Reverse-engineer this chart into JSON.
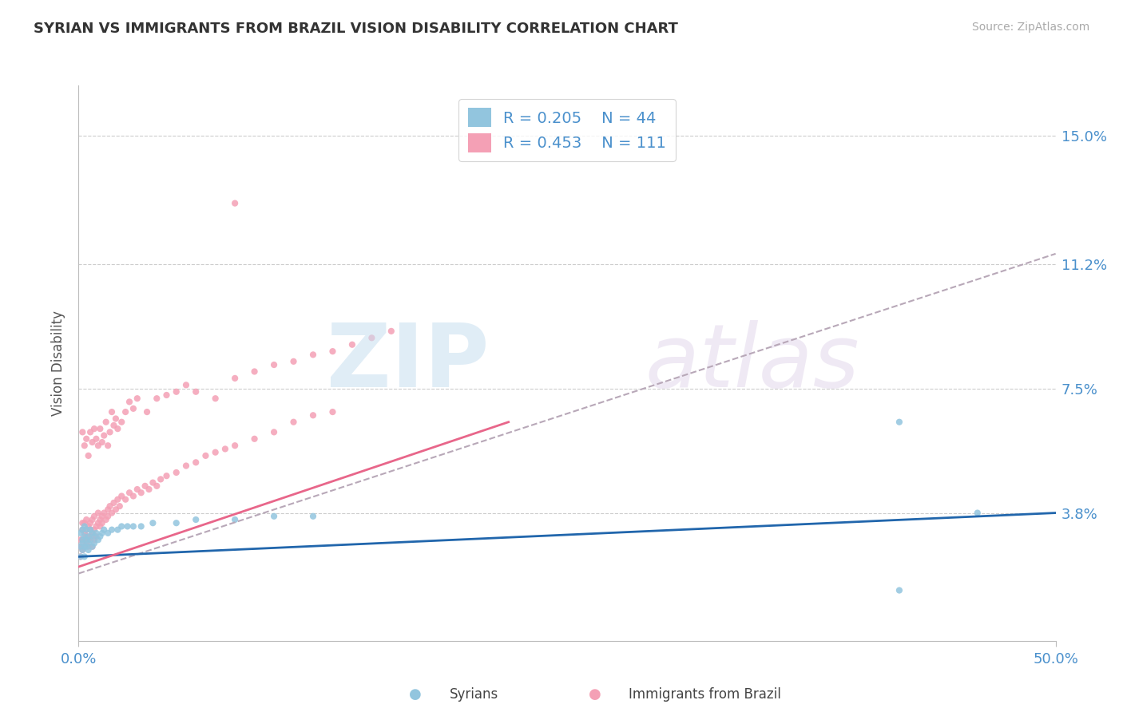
{
  "title": "SYRIAN VS IMMIGRANTS FROM BRAZIL VISION DISABILITY CORRELATION CHART",
  "source": "Source: ZipAtlas.com",
  "xlabel_syrians": "Syrians",
  "xlabel_brazil": "Immigrants from Brazil",
  "ylabel": "Vision Disability",
  "xmin": 0.0,
  "xmax": 0.5,
  "ymin": 0.0,
  "ymax": 0.165,
  "yticks": [
    0.038,
    0.075,
    0.112,
    0.15
  ],
  "ytick_labels": [
    "3.8%",
    "7.5%",
    "11.2%",
    "15.0%"
  ],
  "xtick_labels": [
    "0.0%",
    "50.0%"
  ],
  "xticks": [
    0.0,
    0.5
  ],
  "legend_r1": "R = 0.205",
  "legend_n1": "N = 44",
  "legend_r2": "R = 0.453",
  "legend_n2": "N = 111",
  "color_syrian": "#92c5de",
  "color_brazil": "#f4a0b5",
  "color_syrian_line": "#2166ac",
  "color_brazil_line": "#e8668a",
  "color_dashed_line": "#b8a8b8",
  "background": "#ffffff",
  "grid_color": "#cccccc",
  "title_color": "#333333",
  "axis_label_color": "#4a90cc",
  "syrian_line": [
    [
      0.0,
      0.025
    ],
    [
      0.5,
      0.038
    ]
  ],
  "brazil_line": [
    [
      0.0,
      0.022
    ],
    [
      0.22,
      0.065
    ]
  ],
  "dashed_line": [
    [
      0.0,
      0.02
    ],
    [
      0.5,
      0.115
    ]
  ],
  "syrians_x": [
    0.001,
    0.001,
    0.001,
    0.002,
    0.002,
    0.002,
    0.002,
    0.003,
    0.003,
    0.003,
    0.003,
    0.004,
    0.004,
    0.004,
    0.005,
    0.005,
    0.005,
    0.006,
    0.006,
    0.007,
    0.007,
    0.008,
    0.008,
    0.009,
    0.01,
    0.011,
    0.012,
    0.013,
    0.015,
    0.017,
    0.02,
    0.022,
    0.025,
    0.028,
    0.032,
    0.038,
    0.05,
    0.06,
    0.08,
    0.1,
    0.12,
    0.42,
    0.46,
    0.42
  ],
  "syrians_y": [
    0.028,
    0.032,
    0.025,
    0.03,
    0.027,
    0.033,
    0.029,
    0.028,
    0.031,
    0.025,
    0.034,
    0.03,
    0.028,
    0.033,
    0.029,
    0.031,
    0.027,
    0.03,
    0.033,
    0.028,
    0.032,
    0.031,
    0.029,
    0.032,
    0.03,
    0.031,
    0.032,
    0.033,
    0.032,
    0.033,
    0.033,
    0.034,
    0.034,
    0.034,
    0.034,
    0.035,
    0.035,
    0.036,
    0.036,
    0.037,
    0.037,
    0.065,
    0.038,
    0.015
  ],
  "brazil_x": [
    0.001,
    0.001,
    0.001,
    0.002,
    0.002,
    0.002,
    0.002,
    0.002,
    0.003,
    0.003,
    0.003,
    0.003,
    0.004,
    0.004,
    0.004,
    0.004,
    0.005,
    0.005,
    0.005,
    0.006,
    0.006,
    0.006,
    0.007,
    0.007,
    0.007,
    0.008,
    0.008,
    0.008,
    0.009,
    0.009,
    0.01,
    0.01,
    0.011,
    0.011,
    0.012,
    0.012,
    0.013,
    0.014,
    0.015,
    0.015,
    0.016,
    0.017,
    0.018,
    0.019,
    0.02,
    0.021,
    0.022,
    0.024,
    0.026,
    0.028,
    0.03,
    0.032,
    0.034,
    0.036,
    0.038,
    0.04,
    0.042,
    0.045,
    0.05,
    0.055,
    0.06,
    0.065,
    0.07,
    0.075,
    0.08,
    0.09,
    0.1,
    0.11,
    0.12,
    0.13,
    0.002,
    0.003,
    0.004,
    0.005,
    0.006,
    0.007,
    0.008,
    0.009,
    0.01,
    0.011,
    0.012,
    0.013,
    0.014,
    0.015,
    0.016,
    0.017,
    0.018,
    0.019,
    0.02,
    0.022,
    0.024,
    0.026,
    0.028,
    0.03,
    0.035,
    0.04,
    0.045,
    0.05,
    0.055,
    0.06,
    0.07,
    0.08,
    0.09,
    0.1,
    0.11,
    0.12,
    0.13,
    0.14,
    0.15,
    0.16,
    0.08
  ],
  "brazil_y": [
    0.028,
    0.03,
    0.025,
    0.03,
    0.033,
    0.028,
    0.035,
    0.027,
    0.032,
    0.028,
    0.035,
    0.03,
    0.033,
    0.029,
    0.036,
    0.031,
    0.034,
    0.03,
    0.028,
    0.033,
    0.031,
    0.035,
    0.032,
    0.028,
    0.036,
    0.033,
    0.03,
    0.037,
    0.034,
    0.031,
    0.035,
    0.038,
    0.036,
    0.034,
    0.037,
    0.035,
    0.038,
    0.036,
    0.039,
    0.037,
    0.04,
    0.038,
    0.041,
    0.039,
    0.042,
    0.04,
    0.043,
    0.042,
    0.044,
    0.043,
    0.045,
    0.044,
    0.046,
    0.045,
    0.047,
    0.046,
    0.048,
    0.049,
    0.05,
    0.052,
    0.053,
    0.055,
    0.056,
    0.057,
    0.058,
    0.06,
    0.062,
    0.065,
    0.067,
    0.068,
    0.062,
    0.058,
    0.06,
    0.055,
    0.062,
    0.059,
    0.063,
    0.06,
    0.058,
    0.063,
    0.059,
    0.061,
    0.065,
    0.058,
    0.062,
    0.068,
    0.064,
    0.066,
    0.063,
    0.065,
    0.068,
    0.071,
    0.069,
    0.072,
    0.068,
    0.072,
    0.073,
    0.074,
    0.076,
    0.074,
    0.072,
    0.078,
    0.08,
    0.082,
    0.083,
    0.085,
    0.086,
    0.088,
    0.09,
    0.092,
    0.13
  ]
}
